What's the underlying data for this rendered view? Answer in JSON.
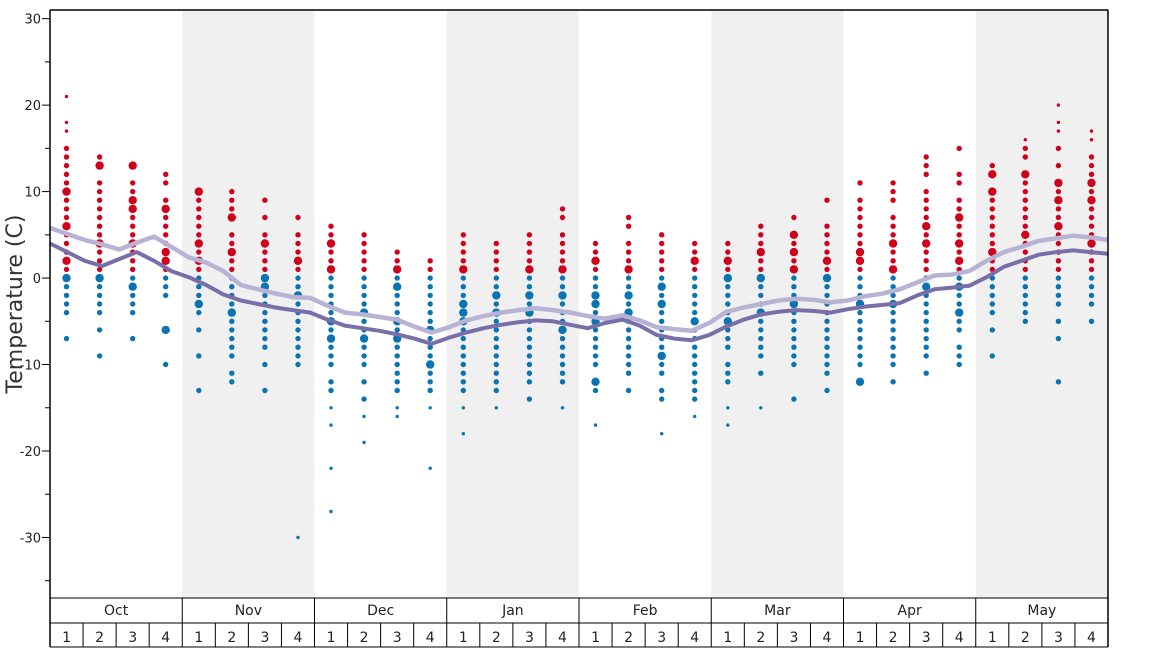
{
  "chart_data": {
    "type": "scatter",
    "title": "",
    "ylabel": "Temperature (C)",
    "xlabel": "",
    "ylim": [
      -37,
      31
    ],
    "y_ticks": [
      -30,
      -20,
      -10,
      0,
      10,
      20,
      30
    ],
    "months": [
      "Oct",
      "Nov",
      "Dec",
      "Jan",
      "Feb",
      "Mar",
      "Apr",
      "May"
    ],
    "weeks": [
      "1",
      "2",
      "3",
      "4"
    ],
    "colors": {
      "warm_dot": "#d0021b",
      "cold_dot": "#0a74b3",
      "line_dark": "#7a6ea8",
      "line_light": "#b8b2d4",
      "shade": "#f0f0f0",
      "axis": "#000000"
    },
    "series": [
      {
        "values": [
          4,
          3,
          2,
          1.4,
          2.2,
          3,
          2,
          0.8,
          0.1,
          -0.8,
          -1.9,
          -2.6,
          -3,
          -3.4,
          -3.7,
          -4,
          -4.8,
          -5.5,
          -5.8,
          -6.1,
          -6.5,
          -7,
          -7.6,
          -6.9,
          -6.3,
          -5.8,
          -5.4,
          -5.1,
          -4.9,
          -5,
          -5.4,
          -5.8,
          -5.2,
          -4.8,
          -5.5,
          -6.6,
          -7,
          -7.2,
          -6.6,
          -5.6,
          -4.8,
          -4.2,
          -3.9,
          -3.7,
          -3.8,
          -4,
          -3.6,
          -3.3,
          -3.1,
          -2.9,
          -2,
          -1.3,
          -1.1,
          -0.9,
          0.1,
          1.3,
          2,
          2.7,
          3,
          3.2,
          3,
          2.8
        ]
      },
      {
        "values": [
          5.8,
          5.1,
          4.4,
          3.9,
          3.3,
          4.1,
          4.8,
          3.6,
          2.4,
          1.8,
          0.8,
          -0.8,
          -1.3,
          -1.8,
          -2.2,
          -2.3,
          -3.2,
          -4,
          -4.2,
          -4.5,
          -4.8,
          -5.6,
          -6.3,
          -5.7,
          -4.9,
          -4.4,
          -4,
          -3.7,
          -3.5,
          -3.7,
          -4,
          -4.4,
          -4.7,
          -4.3,
          -4.9,
          -5.7,
          -5.9,
          -6.1,
          -5.2,
          -3.9,
          -3.4,
          -3,
          -2.6,
          -2.4,
          -2.5,
          -2.8,
          -2.6,
          -2.1,
          -1.8,
          -1.3,
          -0.5,
          0.3,
          0.4,
          0.8,
          2,
          3,
          3.6,
          4.3,
          4.6,
          4.9,
          4.7,
          4.4
        ]
      }
    ],
    "dots": [
      {
        "m": 0,
        "w": 0,
        "vals": [
          21,
          18,
          17,
          15,
          14,
          13,
          12,
          11,
          10,
          9,
          8,
          7,
          6,
          5,
          4,
          3,
          2,
          1,
          0,
          -1,
          -2,
          -3,
          -4,
          -7
        ],
        "big": [
          10,
          6,
          2,
          0
        ]
      },
      {
        "m": 0,
        "w": 1,
        "vals": [
          14,
          13,
          11,
          10,
          9,
          8,
          7,
          6,
          5,
          4,
          3,
          2,
          1,
          0,
          -1,
          -2,
          -3,
          -4,
          -6,
          -9
        ],
        "big": [
          13,
          4,
          0
        ]
      },
      {
        "m": 0,
        "w": 2,
        "vals": [
          13,
          11,
          10,
          9,
          8,
          7,
          6,
          5,
          4,
          3,
          2,
          1,
          0,
          -1,
          -2,
          -3,
          -4,
          -7
        ],
        "big": [
          13,
          9,
          8,
          4,
          -1
        ]
      },
      {
        "m": 0,
        "w": 3,
        "vals": [
          12,
          11,
          9,
          8,
          7,
          6,
          5,
          4,
          3,
          2,
          1,
          0,
          -1,
          -2,
          -6,
          -10
        ],
        "big": [
          8,
          3,
          2,
          -6
        ]
      },
      {
        "m": 1,
        "w": 0,
        "vals": [
          10,
          9,
          8,
          7,
          6,
          5,
          4,
          3,
          2,
          1,
          0,
          -1,
          -2,
          -3,
          -4,
          -6,
          -9,
          -13
        ],
        "big": [
          10,
          4,
          2,
          -3
        ]
      },
      {
        "m": 1,
        "w": 1,
        "vals": [
          10,
          9,
          8,
          7,
          5,
          4,
          3,
          2,
          1,
          0,
          -1,
          -2,
          -3,
          -4,
          -5,
          -6,
          -7,
          -8,
          -9,
          -11,
          -12
        ],
        "big": [
          7,
          3,
          -4
        ]
      },
      {
        "m": 1,
        "w": 2,
        "vals": [
          9,
          7,
          5,
          4,
          3,
          2,
          1,
          0,
          -1,
          -2,
          -3,
          -4,
          -5,
          -6,
          -7,
          -8,
          -10,
          -13
        ],
        "big": [
          4,
          0,
          -1
        ]
      },
      {
        "m": 1,
        "w": 3,
        "vals": [
          7,
          5,
          4,
          3,
          2,
          1,
          0,
          -1,
          -2,
          -3,
          -4,
          -5,
          -6,
          -7,
          -8,
          -9,
          -10,
          -30
        ],
        "big": [
          2,
          -2
        ]
      },
      {
        "m": 2,
        "w": 0,
        "vals": [
          6,
          5,
          4,
          3,
          2,
          1,
          0,
          -1,
          -2,
          -3,
          -4,
          -5,
          -6,
          -7,
          -8,
          -9,
          -10,
          -12,
          -13,
          -15,
          -17,
          -22,
          -27
        ],
        "big": [
          4,
          1,
          -5,
          -7
        ]
      },
      {
        "m": 2,
        "w": 1,
        "vals": [
          5,
          4,
          3,
          2,
          1,
          0,
          -1,
          -2,
          -3,
          -4,
          -5,
          -6,
          -7,
          -8,
          -9,
          -10,
          -12,
          -14,
          -16,
          -19
        ],
        "big": [
          -4,
          -7
        ]
      },
      {
        "m": 2,
        "w": 2,
        "vals": [
          3,
          2,
          1,
          0,
          -1,
          -2,
          -3,
          -4,
          -5,
          -6,
          -7,
          -8,
          -9,
          -10,
          -11,
          -12,
          -13,
          -15,
          -16
        ],
        "big": [
          1,
          -1,
          -5,
          -7
        ]
      },
      {
        "m": 2,
        "w": 3,
        "vals": [
          2,
          1,
          0,
          -1,
          -2,
          -3,
          -4,
          -5,
          -6,
          -7,
          -8,
          -9,
          -10,
          -11,
          -12,
          -13,
          -15,
          -22
        ],
        "big": [
          -6,
          -10
        ]
      },
      {
        "m": 3,
        "w": 0,
        "vals": [
          5,
          4,
          3,
          2,
          1,
          0,
          -1,
          -2,
          -3,
          -4,
          -5,
          -6,
          -7,
          -8,
          -9,
          -10,
          -11,
          -12,
          -13,
          -15,
          -18
        ],
        "big": [
          1,
          -3,
          -4,
          -5
        ]
      },
      {
        "m": 3,
        "w": 1,
        "vals": [
          4,
          3,
          2,
          1,
          0,
          -1,
          -2,
          -3,
          -4,
          -5,
          -6,
          -7,
          -8,
          -9,
          -10,
          -11,
          -12,
          -13,
          -15
        ],
        "big": [
          -2,
          -4
        ]
      },
      {
        "m": 3,
        "w": 2,
        "vals": [
          5,
          4,
          3,
          2,
          1,
          0,
          -1,
          -2,
          -3,
          -4,
          -5,
          -6,
          -7,
          -8,
          -9,
          -10,
          -11,
          -12,
          -14
        ],
        "big": [
          1,
          -2,
          -4
        ]
      },
      {
        "m": 3,
        "w": 3,
        "vals": [
          8,
          7,
          5,
          4,
          3,
          2,
          1,
          0,
          -1,
          -2,
          -3,
          -4,
          -5,
          -6,
          -7,
          -8,
          -9,
          -10,
          -11,
          -12,
          -15
        ],
        "big": [
          1,
          -2,
          -6
        ]
      },
      {
        "m": 4,
        "w": 0,
        "vals": [
          4,
          3,
          2,
          1,
          0,
          -1,
          -2,
          -3,
          -4,
          -5,
          -6,
          -7,
          -8,
          -9,
          -10,
          -12,
          -13,
          -17
        ],
        "big": [
          2,
          -2,
          -3,
          -5,
          -12
        ]
      },
      {
        "m": 4,
        "w": 1,
        "vals": [
          7,
          6,
          4,
          3,
          2,
          1,
          0,
          -1,
          -2,
          -3,
          -4,
          -5,
          -6,
          -7,
          -8,
          -9,
          -10,
          -11,
          -13
        ],
        "big": [
          1,
          -2,
          -4
        ]
      },
      {
        "m": 4,
        "w": 2,
        "vals": [
          5,
          4,
          3,
          2,
          1,
          0,
          -1,
          -2,
          -3,
          -4,
          -5,
          -6,
          -7,
          -8,
          -9,
          -10,
          -11,
          -13,
          -14,
          -18
        ],
        "big": [
          -1,
          -3,
          -9
        ]
      },
      {
        "m": 4,
        "w": 3,
        "vals": [
          4,
          3,
          2,
          1,
          0,
          -1,
          -2,
          -3,
          -4,
          -5,
          -6,
          -7,
          -8,
          -9,
          -10,
          -11,
          -12,
          -13,
          -14,
          -16
        ],
        "big": [
          2,
          -5
        ]
      },
      {
        "m": 5,
        "w": 0,
        "vals": [
          4,
          3,
          2,
          1,
          0,
          -1,
          -2,
          -3,
          -4,
          -5,
          -6,
          -7,
          -8,
          -10,
          -11,
          -12,
          -15,
          -17
        ],
        "big": [
          2,
          0,
          -5
        ]
      },
      {
        "m": 5,
        "w": 1,
        "vals": [
          6,
          5,
          4,
          3,
          2,
          1,
          0,
          -1,
          -2,
          -3,
          -4,
          -5,
          -6,
          -7,
          -8,
          -9,
          -11,
          -15
        ],
        "big": [
          3,
          0,
          -4
        ]
      },
      {
        "m": 5,
        "w": 2,
        "vals": [
          7,
          5,
          4,
          3,
          2,
          1,
          0,
          -1,
          -2,
          -3,
          -4,
          -5,
          -6,
          -7,
          -8,
          -9,
          -10,
          -14
        ],
        "big": [
          5,
          3,
          1,
          -3
        ]
      },
      {
        "m": 5,
        "w": 3,
        "vals": [
          9,
          6,
          5,
          4,
          3,
          2,
          1,
          0,
          -1,
          -2,
          -3,
          -4,
          -5,
          -6,
          -7,
          -8,
          -9,
          -10,
          -11,
          -13
        ],
        "big": [
          2,
          0
        ]
      },
      {
        "m": 6,
        "w": 0,
        "vals": [
          11,
          9,
          8,
          7,
          6,
          5,
          4,
          3,
          2,
          1,
          0,
          -1,
          -2,
          -3,
          -4,
          -5,
          -6,
          -7,
          -8,
          -9,
          -10,
          -12
        ],
        "big": [
          3,
          2,
          -3,
          -12
        ]
      },
      {
        "m": 6,
        "w": 1,
        "vals": [
          11,
          10,
          9,
          7,
          6,
          5,
          4,
          3,
          2,
          1,
          0,
          -1,
          -2,
          -3,
          -4,
          -5,
          -6,
          -7,
          -8,
          -9,
          -10,
          -12
        ],
        "big": [
          4,
          1,
          -3
        ]
      },
      {
        "m": 6,
        "w": 2,
        "vals": [
          14,
          13,
          12,
          10,
          9,
          8,
          7,
          6,
          5,
          4,
          3,
          2,
          1,
          0,
          -1,
          -2,
          -3,
          -4,
          -5,
          -6,
          -7,
          -8,
          -9,
          -11
        ],
        "big": [
          6,
          4,
          -1
        ]
      },
      {
        "m": 6,
        "w": 3,
        "vals": [
          15,
          12,
          11,
          9,
          8,
          7,
          6,
          5,
          4,
          3,
          2,
          1,
          0,
          -1,
          -2,
          -3,
          -4,
          -5,
          -6,
          -8,
          -9,
          -10
        ],
        "big": [
          7,
          4,
          2,
          -1,
          -4
        ]
      },
      {
        "m": 7,
        "w": 0,
        "vals": [
          13,
          12,
          10,
          9,
          8,
          7,
          6,
          5,
          4,
          3,
          2,
          1,
          0,
          -1,
          -2,
          -3,
          -4,
          -6,
          -9
        ],
        "big": [
          12,
          10,
          3
        ]
      },
      {
        "m": 7,
        "w": 1,
        "vals": [
          16,
          15,
          14,
          12,
          11,
          10,
          9,
          8,
          7,
          6,
          5,
          4,
          3,
          2,
          1,
          0,
          -1,
          -2,
          -3,
          -4,
          -5
        ],
        "big": [
          12,
          5
        ]
      },
      {
        "m": 7,
        "w": 2,
        "vals": [
          20,
          18,
          17,
          15,
          13,
          11,
          10,
          9,
          8,
          7,
          6,
          5,
          4,
          3,
          2,
          1,
          0,
          -1,
          -2,
          -3,
          -5,
          -7,
          -12
        ],
        "big": [
          11,
          9,
          6
        ]
      },
      {
        "m": 7,
        "w": 3,
        "vals": [
          17,
          16,
          14,
          13,
          12,
          11,
          10,
          9,
          8,
          7,
          6,
          5,
          4,
          3,
          2,
          1,
          0,
          -1,
          -2,
          -3,
          -5
        ],
        "big": [
          11,
          9,
          4
        ]
      }
    ]
  }
}
